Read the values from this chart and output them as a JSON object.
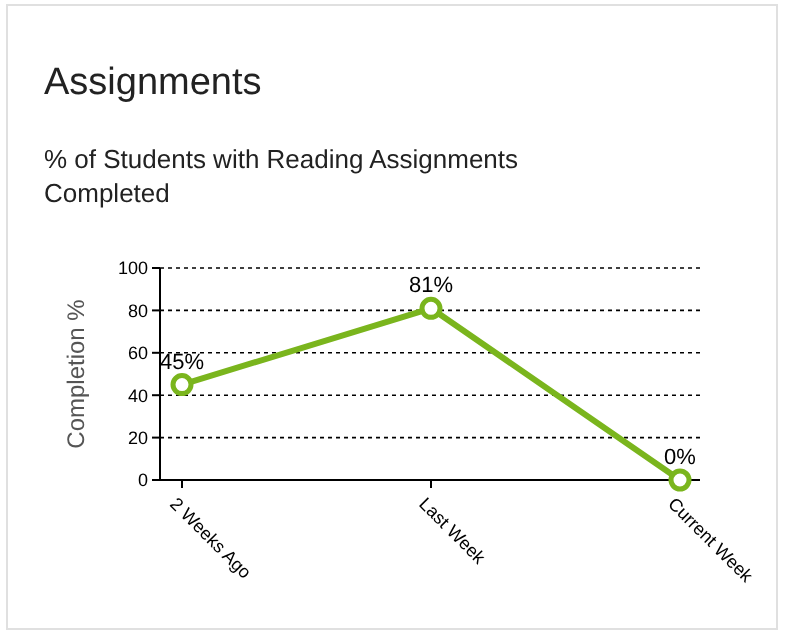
{
  "chart_data": {
    "type": "line",
    "title": "Assignments",
    "subtitle": "% of Students with Reading Assignments Completed",
    "ylabel": "Completion %",
    "categories": [
      "2 Weeks Ago",
      "Last Week",
      "Current Week"
    ],
    "values": [
      45,
      81,
      0
    ],
    "value_labels": [
      "45%",
      "81%",
      "0%"
    ],
    "color": "#7ab51d",
    "ylim": [
      0,
      100
    ],
    "yticks": [
      0,
      20,
      40,
      60,
      80,
      100
    ],
    "grid": "y",
    "marker": "circle",
    "line_style": "solid"
  }
}
